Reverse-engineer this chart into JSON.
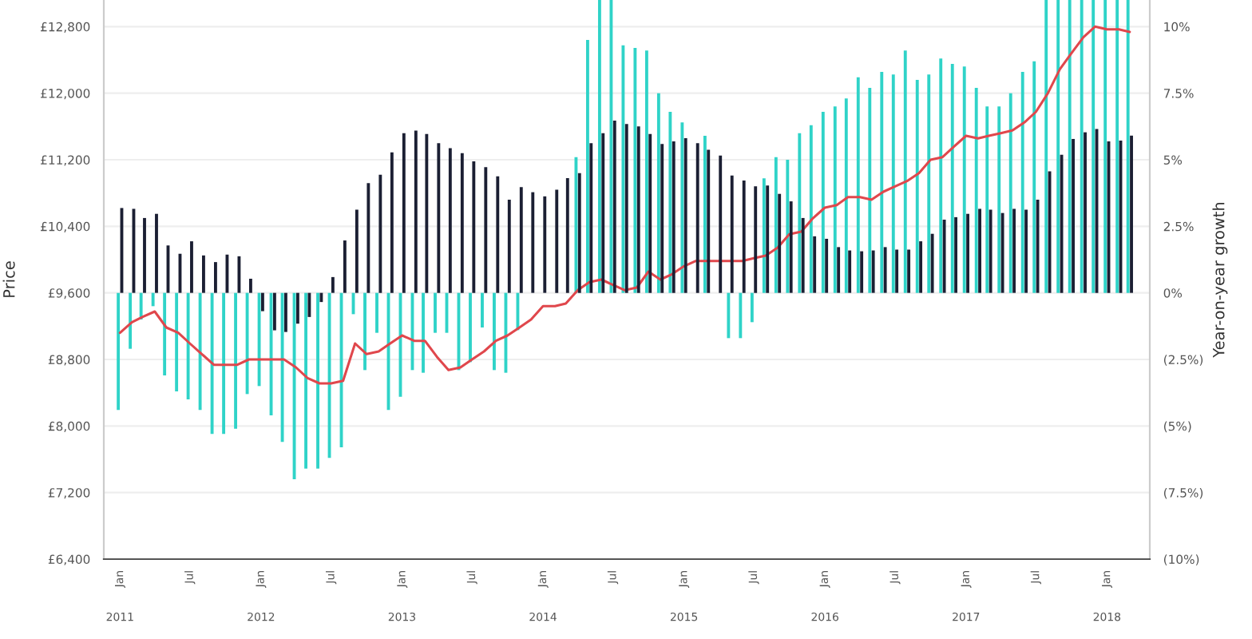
{
  "chart_data": {
    "type": "bar",
    "ylabel": "Price",
    "y2label": "Year-on-year growth",
    "x": [
      "2011-01",
      "2011-02",
      "2011-03",
      "2011-04",
      "2011-05",
      "2011-06",
      "2011-07",
      "2011-08",
      "2011-09",
      "2011-10",
      "2011-11",
      "2011-12",
      "2012-01",
      "2012-02",
      "2012-03",
      "2012-04",
      "2012-05",
      "2012-06",
      "2012-07",
      "2012-08",
      "2012-09",
      "2012-10",
      "2012-11",
      "2012-12",
      "2013-01",
      "2013-02",
      "2013-03",
      "2013-04",
      "2013-05",
      "2013-06",
      "2013-07",
      "2013-08",
      "2013-09",
      "2013-10",
      "2013-11",
      "2013-12",
      "2014-01",
      "2014-02",
      "2014-03",
      "2014-04",
      "2014-05",
      "2014-06",
      "2014-07",
      "2014-08",
      "2014-09",
      "2014-10",
      "2014-11",
      "2014-12",
      "2015-01",
      "2015-02",
      "2015-03",
      "2015-04",
      "2015-05",
      "2015-06",
      "2015-07",
      "2015-08",
      "2015-09",
      "2015-10",
      "2015-11",
      "2015-12",
      "2016-01",
      "2016-02",
      "2016-03",
      "2016-04",
      "2016-05",
      "2016-06",
      "2016-07",
      "2016-08",
      "2016-09",
      "2016-10",
      "2016-11",
      "2016-12",
      "2017-01",
      "2017-02",
      "2017-03",
      "2017-04",
      "2017-05",
      "2017-06",
      "2017-07",
      "2017-08",
      "2017-09",
      "2017-10",
      "2017-11",
      "2017-12",
      "2018-01",
      "2018-02",
      "2018-03"
    ],
    "series": [
      {
        "type": "bar",
        "axis": "y2",
        "color": "#2fd3c8",
        "values": [
          -4.4,
          -2.1,
          -1.0,
          -0.5,
          -3.1,
          -3.7,
          -4.0,
          -4.4,
          -5.3,
          -5.3,
          -5.1,
          -3.8,
          -3.5,
          -4.6,
          -5.6,
          -7.0,
          -6.6,
          -6.6,
          -6.2,
          -5.8,
          -0.8,
          -2.9,
          -1.5,
          -4.4,
          -3.9,
          -2.9,
          -3.0,
          -1.5,
          -1.5,
          -2.9,
          -2.6,
          -1.3,
          -2.9,
          -3.0,
          -1.4,
          null,
          null,
          null,
          null,
          5.1,
          9.5,
          11,
          11,
          9.3,
          9.2,
          9.1,
          7.5,
          6.8,
          6.4,
          null,
          5.9,
          null,
          -1.7,
          -1.7,
          -1.1,
          4.3,
          5.1,
          5.0,
          6.0,
          6.3,
          6.8,
          7.0,
          7.3,
          8.1,
          7.7,
          8.3,
          8.2,
          9.1,
          8.0,
          8.2,
          8.8,
          8.6,
          8.5,
          7.7,
          7.0,
          7.0,
          7.5,
          8.3,
          8.7,
          11,
          11,
          11,
          11,
          11,
          11,
          11,
          11
        ]
      },
      {
        "color": "#1b1f33",
        "base": [
          9600,
          9600,
          9600,
          9600,
          9600,
          9600,
          9600,
          9600,
          9600,
          9600,
          9600,
          9600,
          9600,
          9600,
          9600,
          9600,
          9600,
          9600,
          9600,
          9600,
          9600,
          9600,
          9600,
          9600,
          9600,
          9600,
          9600,
          9600,
          9600,
          9600,
          9600,
          9600,
          9600,
          9600,
          9600,
          9600,
          9600,
          9600,
          9600,
          9600,
          9600,
          9600,
          9600,
          9600,
          9600,
          9600,
          9600,
          9600,
          9600,
          9600,
          9600,
          9600,
          9600,
          9600,
          9600,
          9600,
          9600,
          9600,
          9600,
          9600,
          9600,
          9600,
          9600,
          9600,
          9600,
          9600,
          9600,
          9600,
          9600,
          9600,
          9600,
          9600,
          9600,
          9600,
          9600,
          9600,
          9600,
          9600,
          9600,
          9600,
          9600,
          9600,
          9600,
          9600,
          9600,
          9600,
          9600
        ],
        "values": [
          1020,
          1010,
          900,
          950,
          570,
          470,
          620,
          450,
          370,
          460,
          440,
          170,
          -220,
          -450,
          -470,
          -370,
          -290,
          -110,
          190,
          630,
          1000,
          1320,
          1420,
          1690,
          1920,
          1950,
          1910,
          1800,
          1740,
          1680,
          1580,
          1510,
          1400,
          1120,
          1270,
          1210,
          1160,
          1240,
          1380,
          1440,
          1800,
          1920,
          2070,
          2030,
          2000,
          1910,
          1790,
          1820,
          1860,
          1800,
          1720,
          1650,
          1410,
          1350,
          1280,
          1290,
          1190,
          1100,
          900,
          680,
          650,
          550,
          510,
          500,
          510,
          550,
          520,
          520,
          620,
          710,
          880,
          910,
          950,
          1010,
          1000,
          960,
          1010,
          1000,
          1120,
          1460,
          1660,
          1850,
          1930,
          1970,
          1820,
          1830,
          1890
        ]
      },
      {
        "type": "line",
        "axis": "y2",
        "color": "#e0474c",
        "values": [
          -1.5,
          -1.1,
          -0.9,
          -0.7,
          -1.3,
          -1.5,
          -1.9,
          -2.3,
          -2.7,
          -2.7,
          -2.7,
          -2.5,
          -2.5,
          -2.5,
          -2.5,
          -2.8,
          -3.2,
          -3.4,
          -3.4,
          -3.3,
          -1.9,
          -2.3,
          -2.2,
          -1.9,
          -1.6,
          -1.8,
          -1.8,
          -2.4,
          -2.9,
          -2.8,
          -2.5,
          -2.2,
          -1.8,
          -1.6,
          -1.3,
          -1.0,
          -0.5,
          -0.5,
          -0.4,
          0.1,
          0.4,
          0.5,
          0.3,
          0.1,
          0.2,
          0.8,
          0.5,
          0.7,
          1.0,
          1.2,
          1.2,
          1.2,
          1.2,
          1.2,
          1.3,
          1.4,
          1.7,
          2.2,
          2.3,
          2.8,
          3.2,
          3.3,
          3.6,
          3.6,
          3.5,
          3.8,
          4.0,
          4.2,
          4.5,
          5.0,
          5.1,
          5.5,
          5.9,
          5.8,
          5.9,
          6.0,
          6.1,
          6.4,
          6.8,
          7.5,
          8.4,
          9.0,
          9.6,
          10.0,
          9.9,
          9.9,
          9.8
        ]
      }
    ],
    "xlim": [
      "2010-11-20",
      "2018-04-22"
    ],
    "xticks": [
      {
        "value": "2011-01",
        "label": "Jan"
      },
      {
        "value": "2011-07",
        "label": "Jul"
      },
      {
        "value": "2012-01",
        "label": "Jan"
      },
      {
        "value": "2012-07",
        "label": "Jul"
      },
      {
        "value": "2013-01",
        "label": "Jan"
      },
      {
        "value": "2013-07",
        "label": "Jul"
      },
      {
        "value": "2014-01",
        "label": "Jan"
      },
      {
        "value": "2014-07",
        "label": "Jul"
      },
      {
        "value": "2015-01",
        "label": "Jan"
      },
      {
        "value": "2015-07",
        "label": "Jul"
      },
      {
        "value": "2016-01",
        "label": "Jan"
      },
      {
        "value": "2016-07",
        "label": "Jul"
      },
      {
        "value": "2017-01",
        "label": "Jan"
      },
      {
        "value": "2017-07",
        "label": "Jul"
      },
      {
        "value": "2018-01",
        "label": "Jan"
      }
    ],
    "annotations": [
      "2011",
      "2012",
      "2013",
      "2014",
      "2015",
      "2016",
      "2017",
      "2018"
    ],
    "ylim": [
      6400,
      13120
    ],
    "yticks": [
      {
        "value": 6400,
        "label": "£6,400"
      },
      {
        "value": 7200,
        "label": "£7,200"
      },
      {
        "value": 8000,
        "label": "£8,000"
      },
      {
        "value": 8800,
        "label": "£8,800"
      },
      {
        "value": 9600,
        "label": "£9,600"
      },
      {
        "value": 10400,
        "label": "£10,400"
      },
      {
        "value": 11200,
        "label": "£11,200"
      },
      {
        "value": 12000,
        "label": "£12,000"
      },
      {
        "value": 12800,
        "label": "£12,800"
      }
    ],
    "y2lim": [
      -10,
      11
    ],
    "y2ticks": [
      {
        "value": -10,
        "label": "(10%)"
      },
      {
        "value": -7.5,
        "label": "(7.5%)"
      },
      {
        "value": -5,
        "label": "(5%)"
      },
      {
        "value": -2.5,
        "label": "(2.5%)"
      },
      {
        "value": 0,
        "label": "0%"
      },
      {
        "value": 2.5,
        "label": "2.5%"
      },
      {
        "value": 5,
        "label": "5%"
      },
      {
        "value": 7.5,
        "label": "7.5%"
      },
      {
        "value": 10,
        "label": "10%"
      }
    ],
    "grid": "y",
    "legend": false
  }
}
